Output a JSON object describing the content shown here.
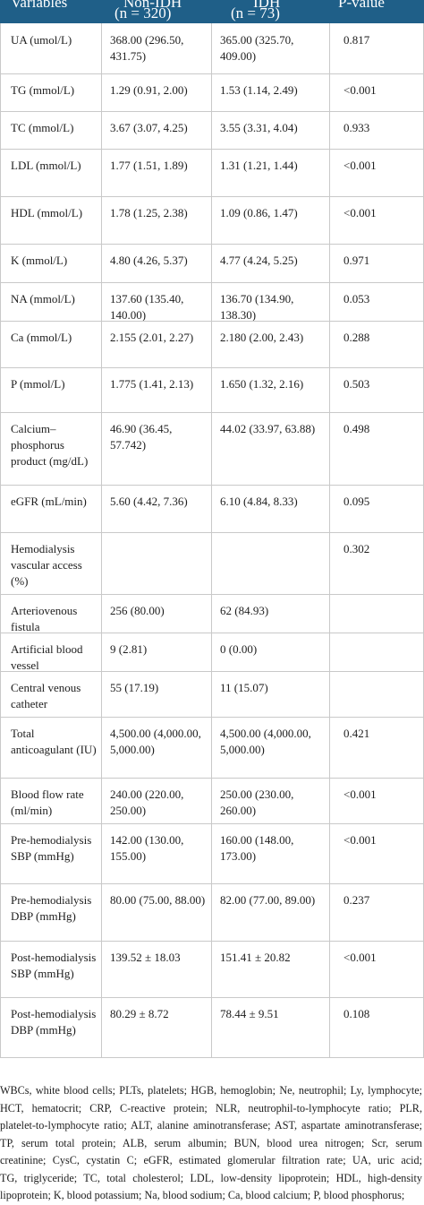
{
  "header": {
    "col1": "Variables",
    "col2_line1": "Non-IDH",
    "col2_n": "(n = 320)",
    "col3_line1": "IDH",
    "col3_n": "(n = 73)",
    "col4": "P-value"
  },
  "rows": [
    {
      "variable": "UA (umol/L)",
      "non_idh": "368.00 (296.50, 431.75)",
      "idh": "365.00 (325.70, 409.00)",
      "p": "0.817"
    },
    {
      "variable": "TG (mmol/L)",
      "non_idh": "1.29 (0.91, 2.00)",
      "idh": "1.53 (1.14, 2.49)",
      "p": "<0.001"
    },
    {
      "variable": "TC (mmol/L)",
      "non_idh": "3.67 (3.07, 4.25)",
      "idh": "3.55 (3.31, 4.04)",
      "p": "0.933"
    },
    {
      "variable": "LDL (mmol/L)",
      "non_idh": "1.77 (1.51, 1.89)",
      "idh": "1.31 (1.21, 1.44)",
      "p": "<0.001"
    },
    {
      "variable": "HDL (mmol/L)",
      "non_idh": "1.78 (1.25, 2.38)",
      "idh": "1.09 (0.86, 1.47)",
      "p": "<0.001"
    },
    {
      "variable": "K (mmol/L)",
      "non_idh": "4.80 (4.26, 5.37)",
      "idh": "4.77 (4.24, 5.25)",
      "p": "0.971"
    },
    {
      "variable": "NA (mmol/L)",
      "non_idh": "137.60 (135.40, 140.00)",
      "idh": "136.70 (134.90, 138.30)",
      "p": "0.053"
    },
    {
      "variable": "Ca (mmol/L)",
      "non_idh": "2.155 (2.01, 2.27)",
      "idh": "2.180 (2.00, 2.43)",
      "p": "0.288"
    },
    {
      "variable": "P (mmol/L)",
      "non_idh": "1.775 (1.41, 2.13)",
      "idh": "1.650 (1.32, 2.16)",
      "p": "0.503"
    },
    {
      "variable": "Calcium–phosphorus product (mg/dL)",
      "non_idh": "46.90 (36.45, 57.742)",
      "idh": "44.02 (33.97, 63.88)",
      "p": "0.498"
    },
    {
      "variable": "eGFR (mL/min)",
      "non_idh": "5.60 (4.42, 7.36)",
      "idh": "6.10 (4.84, 8.33)",
      "p": "0.095"
    },
    {
      "variable": "Hemodialysis vascular access (%)",
      "non_idh": "",
      "idh": "",
      "p": "0.302"
    },
    {
      "variable": "Arteriovenous fistula",
      "non_idh": "256 (80.00)",
      "idh": "62 (84.93)",
      "p": ""
    },
    {
      "variable": "Artificial blood vessel",
      "non_idh": "9 (2.81)",
      "idh": "0 (0.00)",
      "p": ""
    },
    {
      "variable": "Central venous catheter",
      "non_idh": "55 (17.19)",
      "idh": "11 (15.07)",
      "p": ""
    },
    {
      "variable": "Total anticoagulant (IU)",
      "non_idh": "4,500.00 (4,000.00, 5,000.00)",
      "idh": "4,500.00 (4,000.00, 5,000.00)",
      "p": "0.421"
    },
    {
      "variable": "Blood flow rate (ml/min)",
      "non_idh": "240.00 (220.00, 250.00)",
      "idh": "250.00 (230.00, 260.00)",
      "p": "<0.001"
    },
    {
      "variable": "Pre-hemodialysis SBP (mmHg)",
      "non_idh": "142.00 (130.00, 155.00)",
      "idh": "160.00 (148.00, 173.00)",
      "p": "<0.001"
    },
    {
      "variable": "Pre-hemodialysis DBP (mmHg)",
      "non_idh": "80.00 (75.00, 88.00)",
      "idh": "82.00 (77.00, 89.00)",
      "p": "0.237"
    },
    {
      "variable": "Post-hemodialysis SBP (mmHg)",
      "non_idh": "139.52 ± 18.03",
      "idh": "151.41 ± 20.82",
      "p": "<0.001"
    },
    {
      "variable": "Post-hemodialysis DBP (mmHg)",
      "non_idh": "80.29 ± 8.72",
      "idh": "78.44 ± 9.51",
      "p": "0.108"
    }
  ],
  "footnote": [
    "WBCs, white blood cells; PLTs, platelets; HGB, hemoglobin; Ne, neutrophil; Ly, lymphocyte;",
    "HCT, hematocrit; CRP, C-reactive protein; NLR, neutrophil-to-lymphocyte ratio; PLR,",
    "platelet-to-lymphocyte ratio; ALT, alanine aminotransferase; AST, aspartate aminotransferase;",
    "TP, serum total protein; ALB, serum albumin; BUN, blood urea nitrogen; Scr, serum",
    "creatinine; CysC, cystatin C; eGFR, estimated glomerular filtration rate; UA, uric acid;",
    "TG, triglyceride; TC, total cholesterol; LDL, low-density lipoprotein; HDL, high-density",
    "lipoprotein; K, blood potassium; Na, blood sodium; Ca, blood calcium; P, blood phosphorus;"
  ],
  "colors": {
    "header_bg": "#1f5f88",
    "rule": "#c9c9c9"
  }
}
